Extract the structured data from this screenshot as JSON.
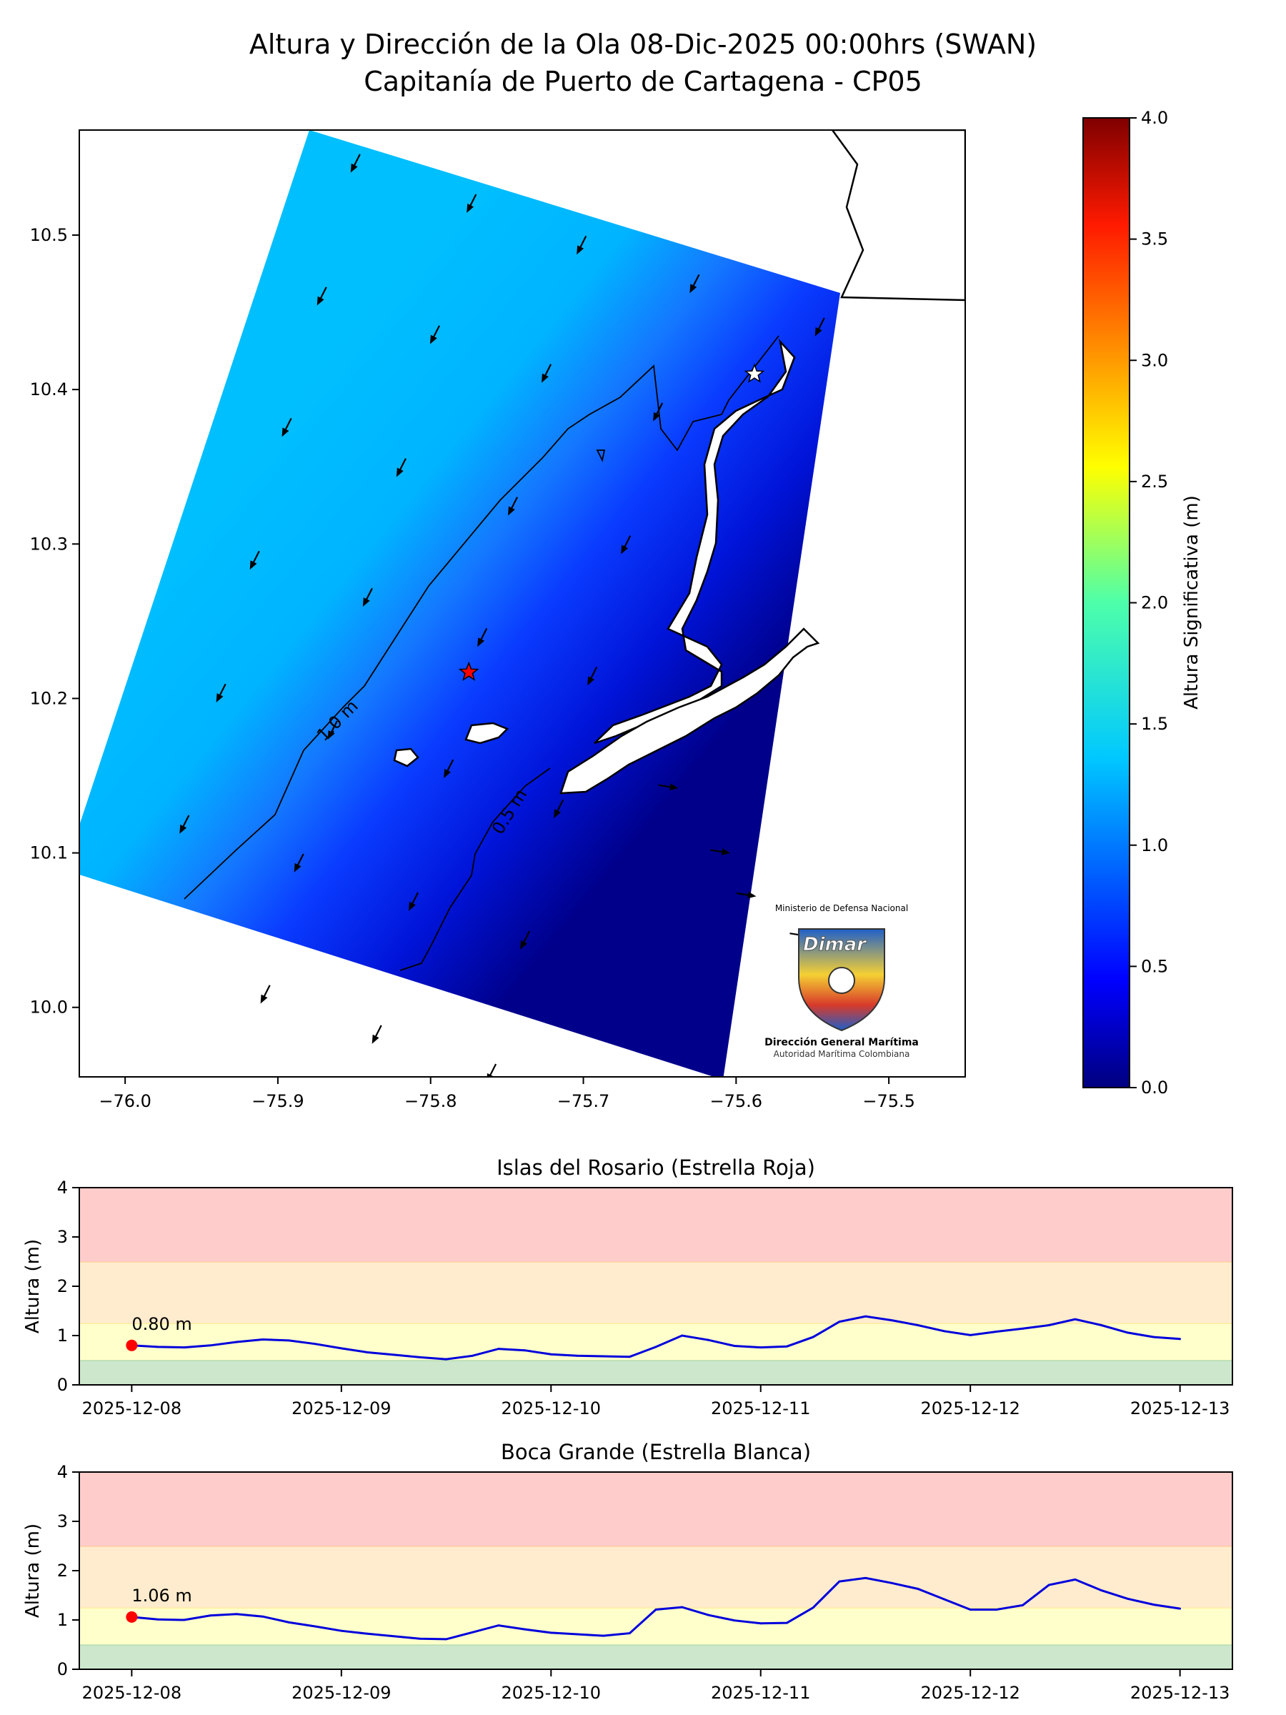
{
  "title": {
    "line1": "Altura y Dirección de la Ola 08-Dic-2025 00:00hrs (SWAN)",
    "line2": "Capitanía de Puerto de Cartagena - CP05"
  },
  "colors": {
    "low": "#00008b",
    "mid": "#0a3cff",
    "high": "#00bfff",
    "coast": "#000000",
    "band_green": "#cde7cd",
    "band_yellow": "#ffffcc",
    "band_orange": "#ffecce",
    "band_red": "#ffcccc",
    "series": "#0000dd",
    "marker": "#ff0000"
  },
  "map": {
    "xlim": [
      -76.03,
      -75.45
    ],
    "ylim": [
      9.955,
      10.568
    ],
    "xticks": [
      -76.0,
      -75.9,
      -75.8,
      -75.7,
      -75.6,
      -75.5
    ],
    "xtick_labels": [
      "−76.0",
      "−75.9",
      "−75.8",
      "−75.7",
      "−75.6",
      "−75.5"
    ],
    "yticks": [
      10.0,
      10.1,
      10.2,
      10.3,
      10.4,
      10.5
    ],
    "ytick_labels": [
      "10.0",
      "10.1",
      "10.2",
      "10.3",
      "10.4",
      "10.5"
    ],
    "contour_labels": [
      "1.0 m",
      "0.5 m"
    ],
    "stars": [
      {
        "name": "Islas del Rosario (Estrella Roja)",
        "lon": -75.775,
        "lat": 10.217,
        "color": "#ff0000"
      },
      {
        "name": "Boca Grande (Estrella Blanca)",
        "lon": -75.588,
        "lat": 10.41,
        "color": "#ffffff"
      }
    ],
    "arrows": [
      [
        -75.849,
        10.547
      ],
      [
        -75.773,
        10.521
      ],
      [
        -75.701,
        10.494
      ],
      [
        -75.627,
        10.469
      ],
      [
        -75.871,
        10.461
      ],
      [
        -75.797,
        10.436
      ],
      [
        -75.724,
        10.411
      ],
      [
        -75.651,
        10.386
      ],
      [
        -75.894,
        10.376
      ],
      [
        -75.819,
        10.35
      ],
      [
        -75.746,
        10.325
      ],
      [
        -75.672,
        10.3
      ],
      [
        -75.915,
        10.29
      ],
      [
        -75.841,
        10.266
      ],
      [
        -75.766,
        10.24
      ],
      [
        -75.694,
        10.215
      ],
      [
        -75.937,
        10.204
      ],
      [
        -75.864,
        10.18
      ],
      [
        -75.788,
        10.155
      ],
      [
        -75.716,
        10.129
      ],
      [
        -75.961,
        10.119
      ],
      [
        -75.886,
        10.094
      ],
      [
        -75.811,
        10.069
      ],
      [
        -75.738,
        10.044
      ],
      [
        -75.908,
        10.009
      ],
      [
        -75.835,
        9.983
      ],
      [
        -75.76,
        9.958
      ],
      [
        -75.686,
        9.933
      ],
      [
        -75.645,
        10.143
      ],
      [
        -75.611,
        10.101
      ],
      [
        -75.594,
        10.073
      ],
      [
        -75.559,
        10.047
      ],
      [
        -75.545,
        10.441
      ]
    ]
  },
  "colorbar": {
    "label": "Altura Significativa (m)",
    "ticks": [
      0.0,
      0.5,
      1.0,
      1.5,
      2.0,
      2.5,
      3.0,
      3.5,
      4.0
    ],
    "tick_labels": [
      "0.0",
      "0.5",
      "1.0",
      "1.5",
      "2.0",
      "2.5",
      "3.0",
      "3.5",
      "4.0"
    ]
  },
  "logo": {
    "ministry": "Ministerio de Defensa Nacional",
    "brand": "Dimar",
    "name": "Dirección General Marítima",
    "tagline": "Autoridad Marítima Colombiana"
  },
  "chart_data": [
    {
      "type": "line",
      "title": "Islas del Rosario (Estrella Roja)",
      "ylabel": "Altura (m)",
      "ylim": [
        0,
        4
      ],
      "yticks": [
        0,
        1,
        2,
        3,
        4
      ],
      "xlim": [
        "2025-12-07T18:00",
        "2025-12-13T06:00"
      ],
      "xticks": [
        "2025-12-08",
        "2025-12-09",
        "2025-12-10",
        "2025-12-11",
        "2025-12-12",
        "2025-12-13"
      ],
      "bands": [
        [
          0,
          0.5,
          "green"
        ],
        [
          0.5,
          1.25,
          "yellow"
        ],
        [
          1.25,
          2.5,
          "orange"
        ],
        [
          2.5,
          4,
          "red"
        ]
      ],
      "annotation": "0.80 m",
      "x": [
        "2025-12-08T00:00",
        "2025-12-08T03:00",
        "2025-12-08T06:00",
        "2025-12-08T09:00",
        "2025-12-08T12:00",
        "2025-12-08T15:00",
        "2025-12-08T18:00",
        "2025-12-08T21:00",
        "2025-12-09T00:00",
        "2025-12-09T03:00",
        "2025-12-09T06:00",
        "2025-12-09T09:00",
        "2025-12-09T12:00",
        "2025-12-09T15:00",
        "2025-12-09T18:00",
        "2025-12-09T21:00",
        "2025-12-10T00:00",
        "2025-12-10T03:00",
        "2025-12-10T06:00",
        "2025-12-10T09:00",
        "2025-12-10T12:00",
        "2025-12-10T15:00",
        "2025-12-10T18:00",
        "2025-12-10T21:00",
        "2025-12-11T00:00",
        "2025-12-11T03:00",
        "2025-12-11T06:00",
        "2025-12-11T09:00",
        "2025-12-11T12:00",
        "2025-12-11T15:00",
        "2025-12-11T18:00",
        "2025-12-11T21:00",
        "2025-12-12T00:00",
        "2025-12-12T03:00",
        "2025-12-12T06:00",
        "2025-12-12T09:00",
        "2025-12-12T12:00",
        "2025-12-12T15:00",
        "2025-12-12T18:00",
        "2025-12-12T21:00",
        "2025-12-13T00:00"
      ],
      "values": [
        0.8,
        0.77,
        0.76,
        0.8,
        0.87,
        0.92,
        0.9,
        0.83,
        0.74,
        0.66,
        0.61,
        0.56,
        0.52,
        0.59,
        0.73,
        0.7,
        0.62,
        0.59,
        0.58,
        0.57,
        0.77,
        1.0,
        0.91,
        0.79,
        0.76,
        0.78,
        0.97,
        1.28,
        1.39,
        1.31,
        1.21,
        1.09,
        1.01,
        1.08,
        1.14,
        1.21,
        1.33,
        1.21,
        1.06,
        0.97,
        0.93
      ]
    },
    {
      "type": "line",
      "title": "Boca Grande (Estrella Blanca)",
      "ylabel": "Altura (m)",
      "ylim": [
        0,
        4
      ],
      "yticks": [
        0,
        1,
        2,
        3,
        4
      ],
      "xlim": [
        "2025-12-07T18:00",
        "2025-12-13T06:00"
      ],
      "xticks": [
        "2025-12-08",
        "2025-12-09",
        "2025-12-10",
        "2025-12-11",
        "2025-12-12",
        "2025-12-13"
      ],
      "bands": [
        [
          0,
          0.5,
          "green"
        ],
        [
          0.5,
          1.25,
          "yellow"
        ],
        [
          1.25,
          2.5,
          "orange"
        ],
        [
          2.5,
          4,
          "red"
        ]
      ],
      "annotation": "1.06 m",
      "x": [
        "2025-12-08T00:00",
        "2025-12-08T03:00",
        "2025-12-08T06:00",
        "2025-12-08T09:00",
        "2025-12-08T12:00",
        "2025-12-08T15:00",
        "2025-12-08T18:00",
        "2025-12-08T21:00",
        "2025-12-09T00:00",
        "2025-12-09T03:00",
        "2025-12-09T06:00",
        "2025-12-09T09:00",
        "2025-12-09T12:00",
        "2025-12-09T15:00",
        "2025-12-09T18:00",
        "2025-12-09T21:00",
        "2025-12-10T00:00",
        "2025-12-10T03:00",
        "2025-12-10T06:00",
        "2025-12-10T09:00",
        "2025-12-10T12:00",
        "2025-12-10T15:00",
        "2025-12-10T18:00",
        "2025-12-10T21:00",
        "2025-12-11T00:00",
        "2025-12-11T03:00",
        "2025-12-11T06:00",
        "2025-12-11T09:00",
        "2025-12-11T12:00",
        "2025-12-11T15:00",
        "2025-12-11T18:00",
        "2025-12-11T21:00",
        "2025-12-12T00:00",
        "2025-12-12T03:00",
        "2025-12-12T06:00",
        "2025-12-12T09:00",
        "2025-12-12T12:00",
        "2025-12-12T15:00",
        "2025-12-12T18:00",
        "2025-12-12T21:00",
        "2025-12-13T00:00"
      ],
      "values": [
        1.06,
        1.01,
        1.0,
        1.09,
        1.12,
        1.07,
        0.95,
        0.87,
        0.78,
        0.72,
        0.67,
        0.62,
        0.61,
        0.75,
        0.89,
        0.81,
        0.74,
        0.71,
        0.68,
        0.73,
        1.21,
        1.26,
        1.1,
        0.99,
        0.93,
        0.94,
        1.25,
        1.78,
        1.85,
        1.75,
        1.63,
        1.42,
        1.21,
        1.21,
        1.3,
        1.71,
        1.82,
        1.6,
        1.43,
        1.31,
        1.23
      ]
    }
  ]
}
